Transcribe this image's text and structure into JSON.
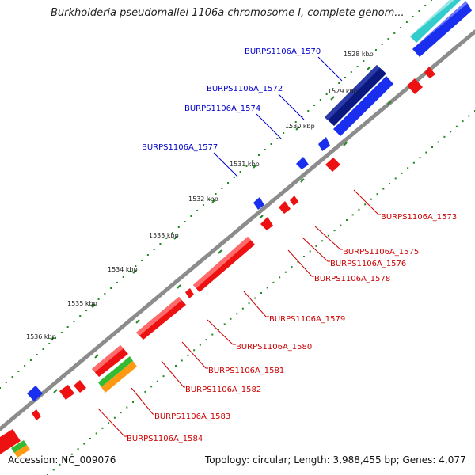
{
  "title": "Burkholderia pseudomallei 1106a chromosome I, complete genom...",
  "footer": {
    "accession": "Accession: NC_009076",
    "summary": "Topology: circular; Length: 3,988,455 bp; Genes: 4,077"
  },
  "colors": {
    "backbone": "#8c8c8c",
    "forward_label": "#0000cc",
    "reverse_label": "#cc0000",
    "forward_gene": "#1a2ef0",
    "forward_gene_dark": "#0a1880",
    "reverse_gene": "#ee1111",
    "cyan_feature": "#33cccc",
    "green_feature": "#33bb33",
    "orange_feature": "#ff9911",
    "tick": "#228822"
  },
  "ticks": [
    "1528 kbp",
    "1529 kbp",
    "1530 kbp",
    "1531 kbp",
    "1532 kbp",
    "1533 kbp",
    "1534 kbp",
    "1535 kbp",
    "1536 kbp"
  ],
  "forward_genes": [
    "BURPS1106A_1570",
    "BURPS1106A_1572",
    "BURPS1106A_1574",
    "BURPS1106A_1577"
  ],
  "reverse_genes": [
    "BURPS1106A_1573",
    "BURPS1106A_1575",
    "BURPS1106A_1576",
    "BURPS1106A_1578",
    "BURPS1106A_1579",
    "BURPS1106A_1580",
    "BURPS1106A_1581",
    "BURPS1106A_1582",
    "BURPS1106A_1583",
    "BURPS1106A_1584"
  ]
}
